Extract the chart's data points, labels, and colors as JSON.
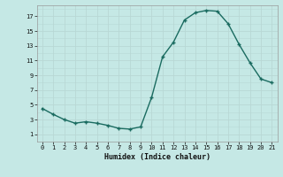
{
  "x": [
    0,
    1,
    2,
    3,
    4,
    5,
    6,
    7,
    8,
    9,
    10,
    11,
    12,
    13,
    14,
    15,
    16,
    17,
    18,
    19,
    20,
    21
  ],
  "y": [
    4.5,
    3.7,
    3.0,
    2.5,
    2.7,
    2.5,
    2.2,
    1.8,
    1.7,
    2.0,
    6.0,
    11.5,
    13.5,
    16.5,
    17.5,
    17.8,
    17.7,
    16.0,
    13.2,
    10.7,
    8.5,
    8.0
  ],
  "xlabel": "Humidex (Indice chaleur)",
  "bg_color": "#c5e8e5",
  "grid_color": "#b8d8d5",
  "line_color": "#1a6b60",
  "marker_color": "#1a6b60",
  "xlim": [
    -0.5,
    21.5
  ],
  "ylim": [
    0,
    18.5
  ],
  "yticks": [
    1,
    3,
    5,
    7,
    9,
    11,
    13,
    15,
    17
  ],
  "xticks": [
    0,
    1,
    2,
    3,
    4,
    5,
    6,
    7,
    8,
    9,
    10,
    11,
    12,
    13,
    14,
    15,
    16,
    17,
    18,
    19,
    20,
    21
  ]
}
